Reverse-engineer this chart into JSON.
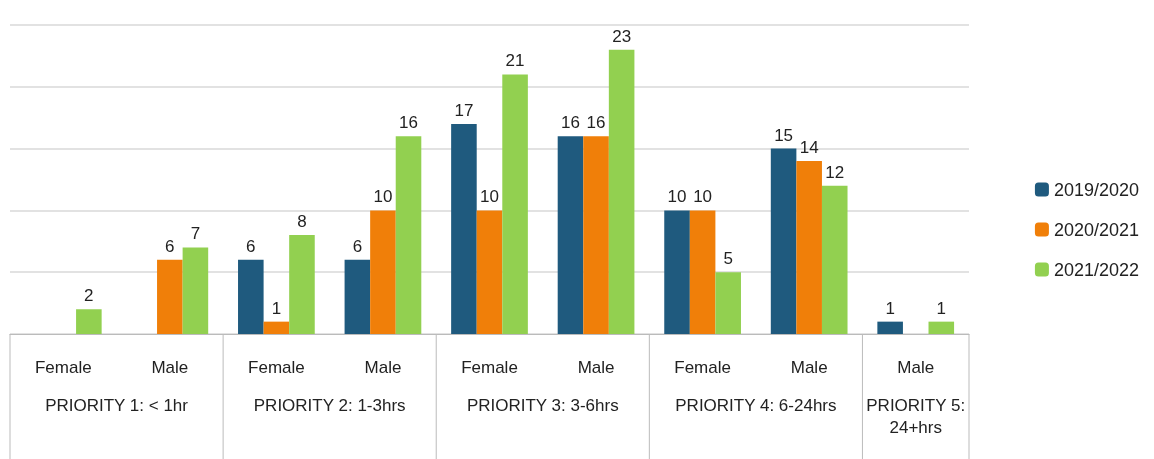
{
  "chart_data": {
    "type": "bar",
    "categories": [
      "Female",
      "Male",
      "Female",
      "Male",
      "Female",
      "Male",
      "Female",
      "Male",
      "Male"
    ],
    "series": [
      {
        "name": "2019/2020",
        "color": "#1f5a7e",
        "values": [
          null,
          null,
          6,
          6,
          17,
          16,
          10,
          15,
          1
        ]
      },
      {
        "name": "2020/2021",
        "color": "#f07f09",
        "values": [
          null,
          6,
          1,
          10,
          10,
          16,
          10,
          14,
          null
        ]
      },
      {
        "name": "2021/2022",
        "color": "#92d050",
        "values": [
          2,
          7,
          8,
          16,
          21,
          23,
          5,
          12,
          1
        ]
      }
    ],
    "annotations": [
      "PRIORITY 1: < 1hr",
      "PRIORITY 2: 1-3hrs",
      "PRIORITY 3: 3-6hrs",
      "PRIORITY 4: 6-24hrs",
      "PRIORITY 5:\n24+hrs"
    ],
    "ylim": [
      0,
      25
    ],
    "yticks": [
      0,
      5,
      10,
      15,
      20,
      25
    ],
    "grid": "y",
    "tick_labels": "x",
    "data_labels": true,
    "legend": "right"
  }
}
